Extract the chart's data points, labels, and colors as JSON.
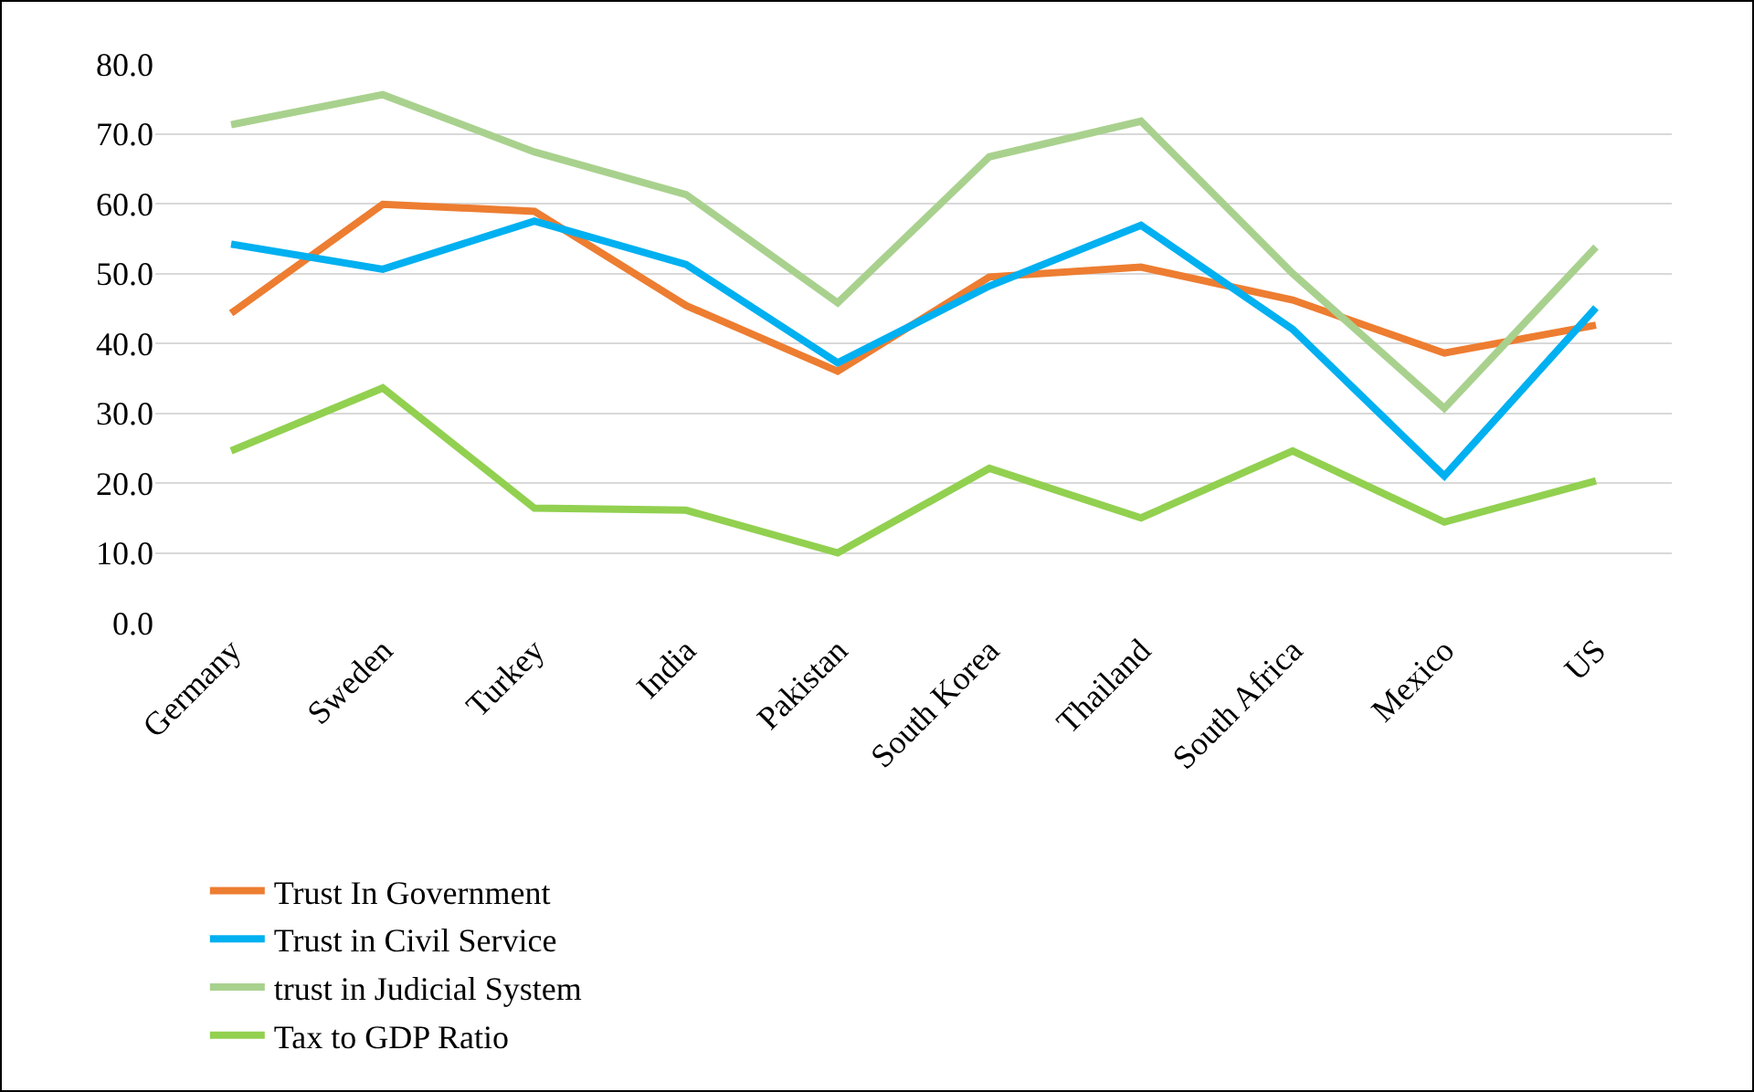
{
  "chart_data": {
    "type": "line",
    "categories": [
      "Germany",
      "Sweden",
      "Turkey",
      "India",
      "Pakistan",
      "South Korea",
      "Thailand",
      "South Africa",
      "Mexico",
      "US"
    ],
    "series": [
      {
        "name": "Trust In Government",
        "color": "#ed7d31",
        "values": [
          44.3,
          59.9,
          58.9,
          45.4,
          36.0,
          49.5,
          50.9,
          46.2,
          38.6,
          42.6
        ]
      },
      {
        "name": "Trust in Civil Service",
        "color": "#00b0f0",
        "values": [
          54.2,
          50.6,
          57.5,
          51.3,
          37.2,
          48.2,
          56.9,
          42.0,
          21.0,
          45.1
        ]
      },
      {
        "name": "trust in Judicial System",
        "color": "#a9d18e",
        "values": [
          71.3,
          75.6,
          67.4,
          61.3,
          45.8,
          66.7,
          71.8,
          50.0,
          30.7,
          53.8
        ]
      },
      {
        "name": "Tax to GDP Ratio",
        "color": "#92d050",
        "values": [
          24.6,
          33.6,
          16.4,
          16.1,
          10.0,
          22.1,
          15.0,
          24.6,
          14.4,
          20.3
        ]
      }
    ],
    "ylim": [
      0,
      80
    ],
    "yticks": [
      {
        "value": 0,
        "label": "0.0"
      },
      {
        "value": 10,
        "label": "10.0"
      },
      {
        "value": 20,
        "label": "20.0"
      },
      {
        "value": 30,
        "label": "30.0"
      },
      {
        "value": 40,
        "label": "40.0"
      },
      {
        "value": 50,
        "label": "50.0"
      },
      {
        "value": 60,
        "label": "60.0"
      },
      {
        "value": 70,
        "label": "70.0"
      },
      {
        "value": 80,
        "label": "80.0"
      }
    ],
    "grid": "y",
    "legend": "bottom",
    "marker": "none",
    "line_style": "solid"
  }
}
